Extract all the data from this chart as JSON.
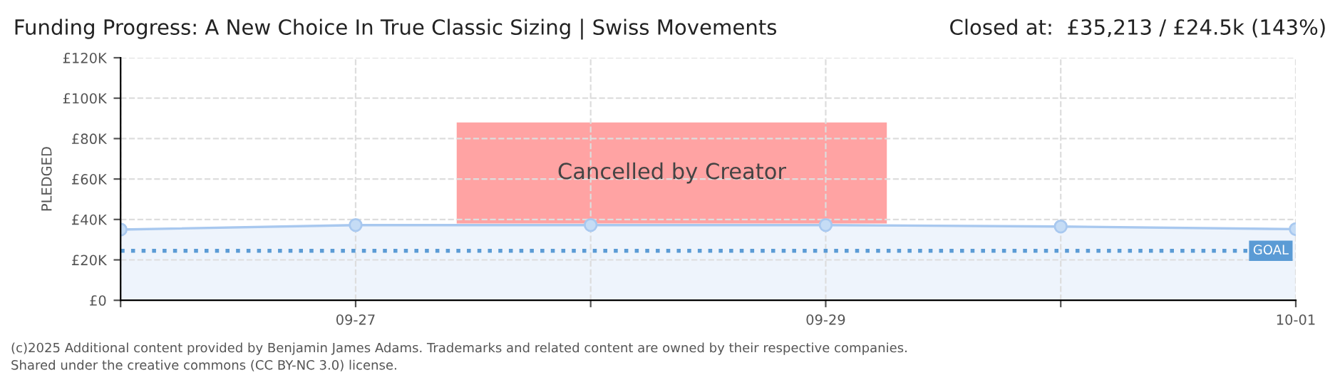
{
  "chart_data": {
    "type": "area",
    "title": "Funding Progress: A New Choice In True Classic Sizing | Swiss Movements",
    "subtitle": "Closed at:  £35,213 / £24.5k (143%)",
    "ylabel": "PLEDGED",
    "categories": [
      null,
      "09-27",
      null,
      "09-29",
      null,
      "10-01"
    ],
    "series": [
      {
        "color": "#a8c8ef",
        "values": [
          35000,
          37200,
          37200,
          37200,
          36500,
          35200
        ]
      }
    ],
    "marker": "circle",
    "line_style": "solid",
    "ylim": [
      0,
      120000
    ],
    "yticks": [
      {
        "value": 0,
        "label": "£0"
      },
      {
        "value": 20000,
        "label": "£20K"
      },
      {
        "value": 40000,
        "label": "£40K"
      },
      {
        "value": 60000,
        "label": "£60K"
      },
      {
        "value": 80000,
        "label": "£80K"
      },
      {
        "value": 100000,
        "label": "£100K"
      },
      {
        "value": 120000,
        "label": "£120K"
      }
    ],
    "ref_lines": [
      {
        "axis": "y",
        "value": 24500,
        "label": "GOAL",
        "color": "#5b9bd5",
        "line_style": "dotted"
      }
    ],
    "grid": true,
    "legend": false,
    "annotations": [
      "Cancelled by Creator",
      "(c)2025 Additional content provided by Benjamin James Adams. Trademarks and related content are owned by their respective companies.",
      "Shared under the creative commons (CC BY-NC 3.0) license."
    ]
  }
}
